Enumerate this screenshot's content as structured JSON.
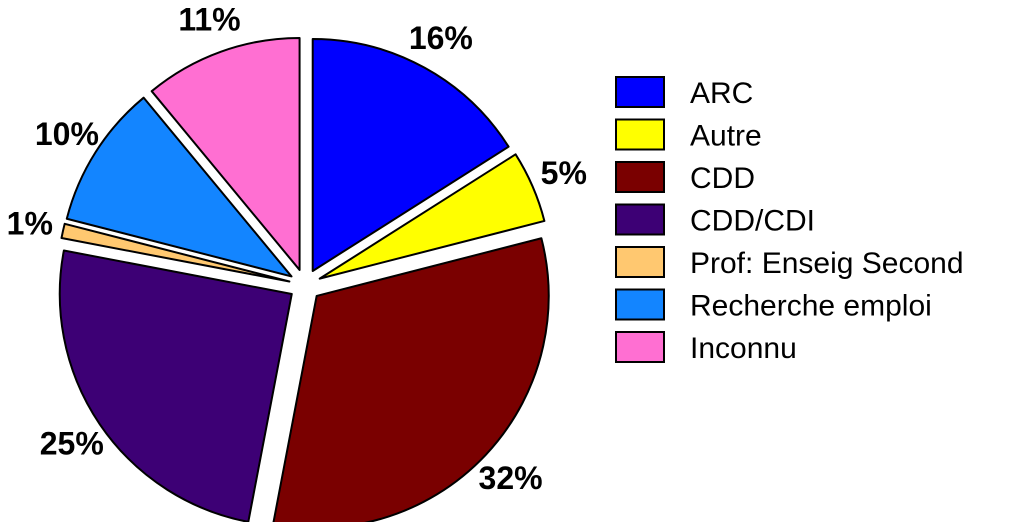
{
  "chart_data": {
    "type": "pie",
    "title": "",
    "legend_position": "right",
    "slices": [
      {
        "label": "ARC",
        "value": 16,
        "display": "16%",
        "color": "#0000ff"
      },
      {
        "label": "Autre",
        "value": 5,
        "display": "5%",
        "color": "#ffff00"
      },
      {
        "label": "CDD",
        "value": 32,
        "display": "32%",
        "color": "#7a0000"
      },
      {
        "label": "CDD/CDI",
        "value": 25,
        "display": "25%",
        "color": "#3d0075"
      },
      {
        "label": "Prof: Enseig Second",
        "value": 1,
        "display": "1%",
        "color": "#ffc870"
      },
      {
        "label": "Recherche emploi",
        "value": 10,
        "display": "10%",
        "color": "#1385ff"
      },
      {
        "label": "Inconnu",
        "value": 11,
        "display": "11%",
        "color": "#ff6fd2"
      }
    ]
  }
}
